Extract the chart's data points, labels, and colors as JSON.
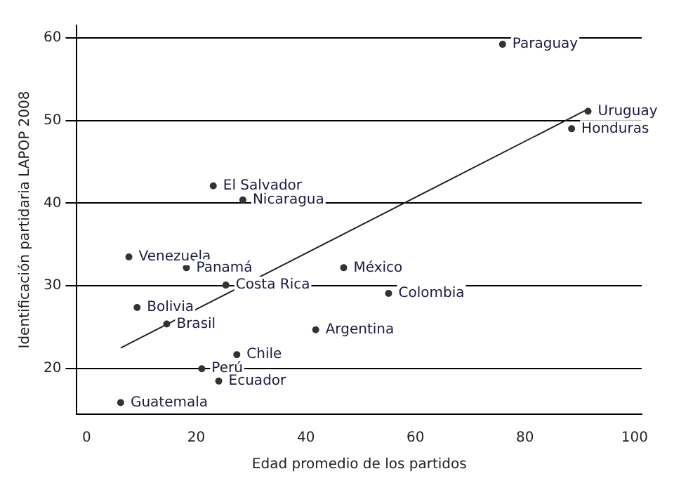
{
  "chart_data": {
    "type": "scatter",
    "xlabel": "Edad promedio de los partidos",
    "ylabel": "Identificación partidaria LAPOP 2008",
    "xlim": [
      -1.8,
      101.3
    ],
    "ylim": [
      14.5,
      61.5
    ],
    "xticks": [
      0,
      20,
      40,
      60,
      80,
      100
    ],
    "yticks": [
      20,
      30,
      40,
      50,
      60
    ],
    "grid": "y",
    "marker": "circle",
    "series": [
      {
        "color": "#333333",
        "x": [
          75.9,
          91.5,
          88.5,
          23.1,
          28.5,
          7.7,
          18.2,
          25.4,
          9.2,
          14.6,
          27.4,
          21.0,
          24.1,
          6.2,
          41.8,
          46.9,
          55.1
        ],
        "values": [
          59.2,
          51.1,
          49.0,
          42.1,
          40.4,
          33.5,
          32.2,
          30.1,
          27.4,
          25.4,
          21.7,
          20.0,
          18.5,
          15.9,
          24.7,
          32.2,
          29.1
        ]
      },
      {
        "type": "line",
        "color": "#222222",
        "x": [
          6.2,
          91
        ],
        "values": [
          22.5,
          51.2
        ],
        "marker": "none"
      }
    ],
    "annotations": [
      {
        "text": "Paraguay",
        "x": 75.9,
        "y": 59.2
      },
      {
        "text": "Uruguay",
        "x": 91.5,
        "y": 51.1
      },
      {
        "text": "Honduras",
        "x": 88.5,
        "y": 49.0
      },
      {
        "text": "El Salvador",
        "x": 23.1,
        "y": 42.1
      },
      {
        "text": "Nicaragua",
        "x": 28.5,
        "y": 40.4
      },
      {
        "text": "Venezuela",
        "x": 7.7,
        "y": 33.5
      },
      {
        "text": "Panamá",
        "x": 18.2,
        "y": 32.2
      },
      {
        "text": "Costa Rica",
        "x": 25.4,
        "y": 30.1
      },
      {
        "text": "Bolivia",
        "x": 9.2,
        "y": 27.4
      },
      {
        "text": "Brasil",
        "x": 14.6,
        "y": 25.4
      },
      {
        "text": "Chile",
        "x": 27.4,
        "y": 21.7
      },
      {
        "text": "Perú",
        "x": 21.0,
        "y": 20.0
      },
      {
        "text": "Ecuador",
        "x": 24.1,
        "y": 18.5
      },
      {
        "text": "Guatemala",
        "x": 6.2,
        "y": 15.9
      },
      {
        "text": "Argentina",
        "x": 41.8,
        "y": 24.7
      },
      {
        "text": "México",
        "x": 46.9,
        "y": 32.2
      },
      {
        "text": "Colombia",
        "x": 55.1,
        "y": 29.1
      }
    ]
  }
}
